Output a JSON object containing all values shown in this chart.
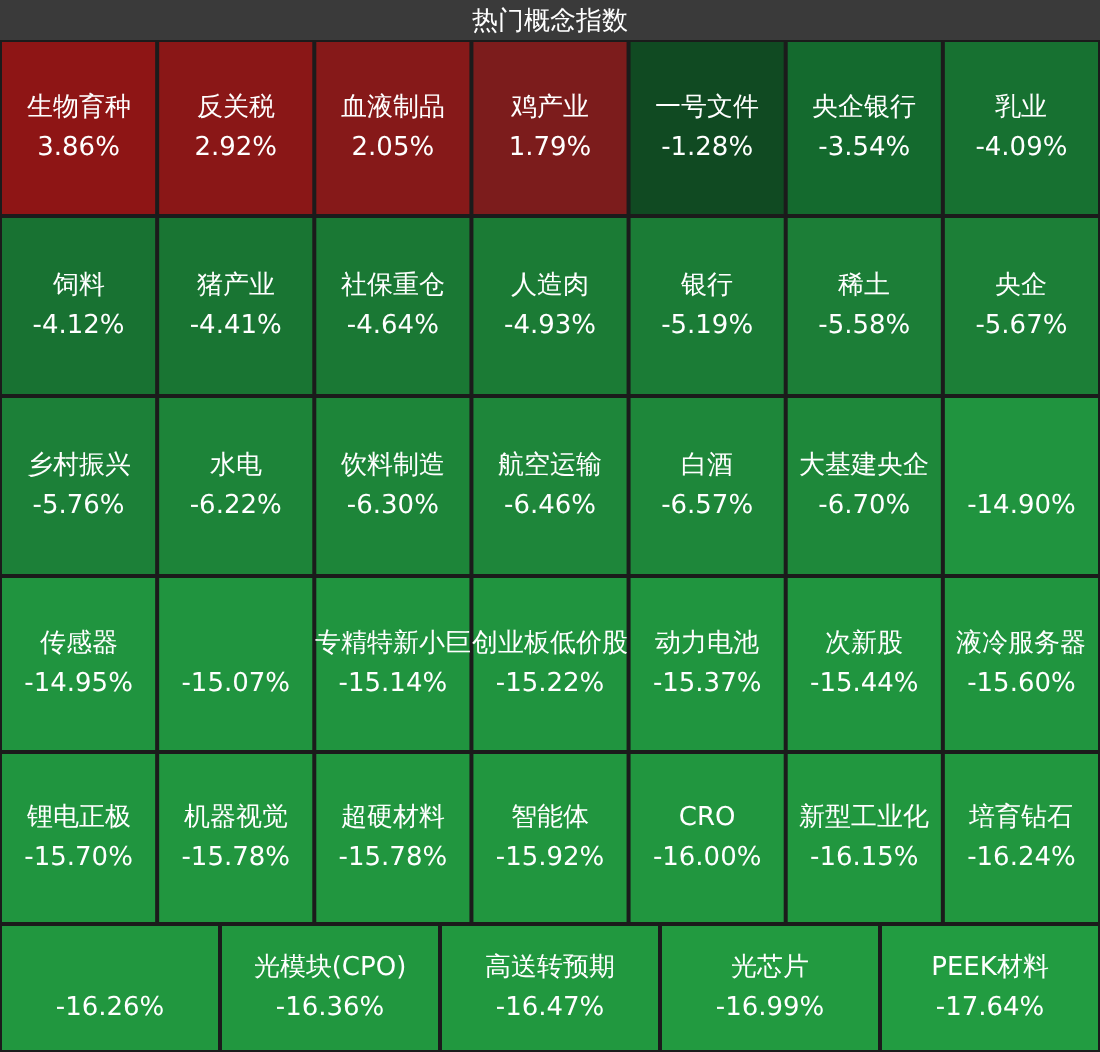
{
  "chart_data": {
    "type": "other",
    "title": "热门概念指数",
    "categories": [
      "生物育种",
      "反关税",
      "血液制品",
      "鸡产业",
      "一号文件",
      "央企银行",
      "乳业",
      "饲料",
      "猪产业",
      "社保重仓",
      "人造肉",
      "银行",
      "稀土",
      "央企",
      "乡村振兴",
      "水电",
      "饮料制造",
      "航空运输",
      "白酒",
      "大基建央企",
      null,
      "传感器",
      null,
      "专精特新小巨",
      "创业板低价股",
      "动力电池",
      "次新股",
      "液冷服务器",
      "锂电正极",
      "机器视觉",
      "超硬材料",
      "智能体",
      "CRO",
      "新型工业化",
      "培育钻石",
      null,
      "光模块(CPO)",
      "高送转预期",
      "光芯片",
      "PEEK材料"
    ],
    "values": [
      3.86,
      2.92,
      2.05,
      1.79,
      -1.28,
      -3.54,
      -4.09,
      -4.12,
      -4.41,
      -4.64,
      -4.93,
      -5.19,
      -5.58,
      -5.67,
      -5.76,
      -6.22,
      -6.3,
      -6.46,
      -6.57,
      -6.7,
      -14.9,
      -14.95,
      -15.07,
      -15.14,
      -15.22,
      -15.37,
      -15.44,
      -15.6,
      -15.7,
      -15.78,
      -15.78,
      -15.92,
      -16.0,
      -16.15,
      -16.24,
      -16.26,
      -16.36,
      -16.47,
      -16.99,
      -17.64
    ],
    "value_labels": [
      "3.86%",
      "2.92%",
      "2.05%",
      "1.79%",
      "-1.28%",
      "-3.54%",
      "-4.09%",
      "-4.12%",
      "-4.41%",
      "-4.64%",
      "-4.93%",
      "-5.19%",
      "-5.58%",
      "-5.67%",
      "-5.76%",
      "-6.22%",
      "-6.30%",
      "-6.46%",
      "-6.57%",
      "-6.70%",
      "-14.90%",
      "-14.95%",
      "-15.07%",
      "-15.14%",
      "-15.22%",
      "-15.37%",
      "-15.44%",
      "-15.60%",
      "-15.70%",
      "-15.78%",
      "-15.78%",
      "-15.92%",
      "-16.00%",
      "-16.15%",
      "-16.24%",
      "-16.26%",
      "-16.36%",
      "-16.47%",
      "-16.99%",
      "-17.64%"
    ],
    "colors": [
      "#8e1515",
      "#8a1717",
      "#861919",
      "#7c1c1c",
      "#104a22",
      "#146a2e",
      "#177131",
      "#187232",
      "#197533",
      "#1a7834",
      "#1b7b35",
      "#1b7c36",
      "#1c7e37",
      "#1c7f37",
      "#1c8038",
      "#1d8439",
      "#1d8539",
      "#1e863a",
      "#1e873a",
      "#1e883a",
      "#20943f",
      "#20943f",
      "#20943f",
      "#20943f",
      "#20943f",
      "#20953f",
      "#20953f",
      "#20953f",
      "#20953f",
      "#21963f",
      "#21963f",
      "#21963f",
      "#21963f",
      "#21973f",
      "#21973f",
      "#21973f",
      "#21973f",
      "#21983f",
      "#229a40",
      "#229c41"
    ]
  }
}
